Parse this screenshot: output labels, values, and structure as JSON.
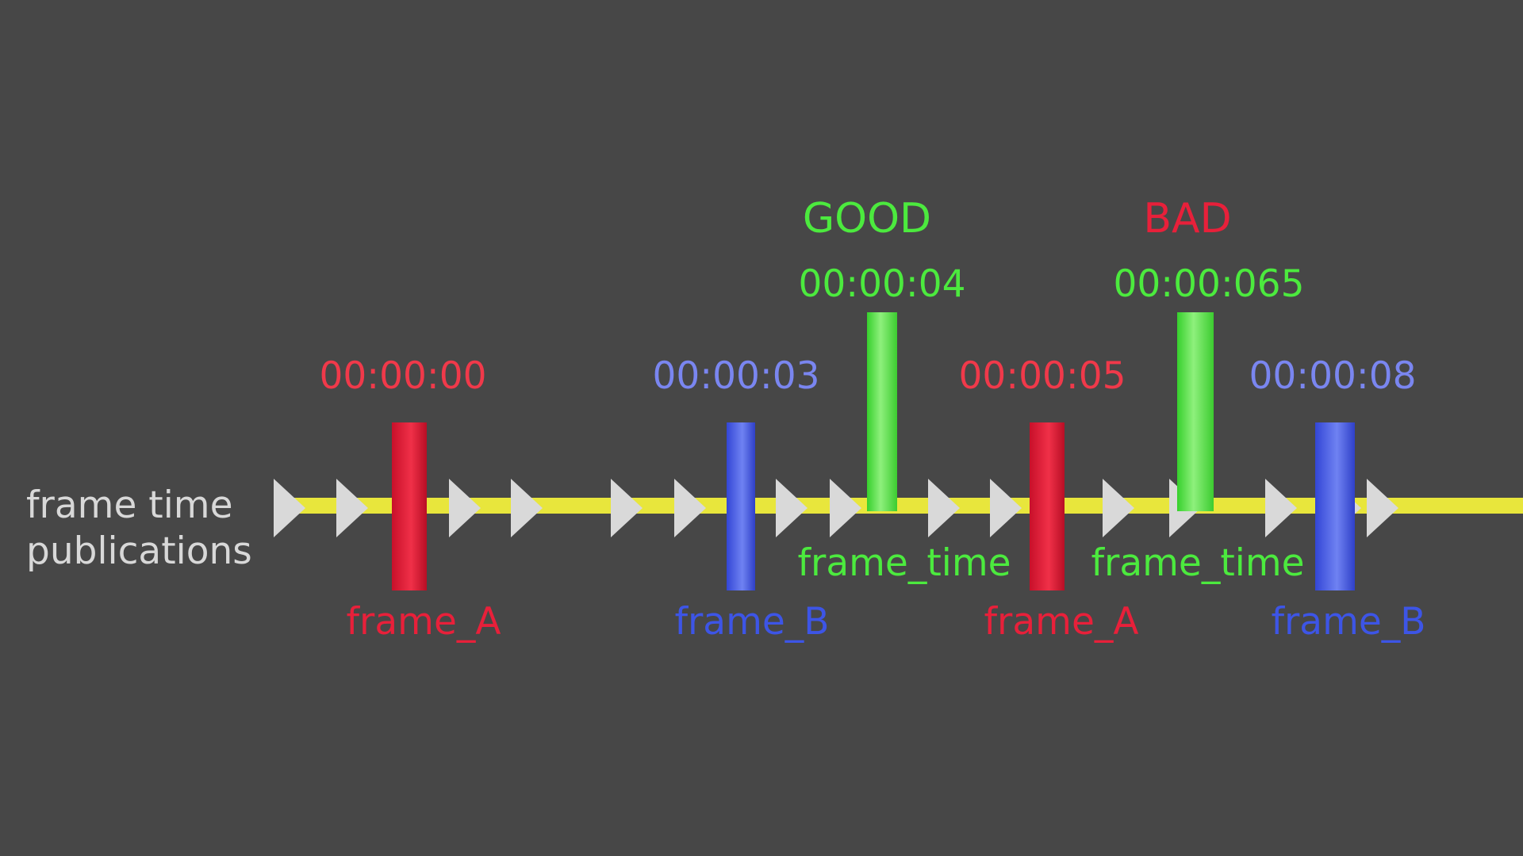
{
  "row_label": {
    "line1": "frame time",
    "line2": "publications"
  },
  "colors": {
    "background": "#474747",
    "timeline": "#e8e63c",
    "arrow": "#d9d9d9",
    "label_text": "#d8d8d8",
    "frame_A": "#e8203a",
    "frame_A_time": "#f0394a",
    "frame_B": "#3d55e6",
    "frame_B_time": "#7a86f0",
    "frame_time": "#4cea3e",
    "good": "#4cea3e",
    "bad": "#e8203a"
  },
  "frames": [
    {
      "id": "frame-a-1",
      "kind": "frame_A",
      "label": "frame_A",
      "time": "00:00:00"
    },
    {
      "id": "frame-b-1",
      "kind": "frame_B",
      "label": "frame_B",
      "time": "00:00:03"
    },
    {
      "id": "frame-a-2",
      "kind": "frame_A",
      "label": "frame_A",
      "time": "00:00:05"
    },
    {
      "id": "frame-b-2",
      "kind": "frame_B",
      "label": "frame_B",
      "time": "00:00:08"
    }
  ],
  "frame_times": [
    {
      "id": "frame-time-good",
      "label": "frame_time",
      "time": "00:00:04",
      "verdict": "GOOD",
      "verdict_kind": "good"
    },
    {
      "id": "frame-time-bad",
      "label": "frame_time",
      "time": "00:00:065",
      "verdict": "BAD",
      "verdict_kind": "bad"
    }
  ],
  "arrow_count": 18
}
